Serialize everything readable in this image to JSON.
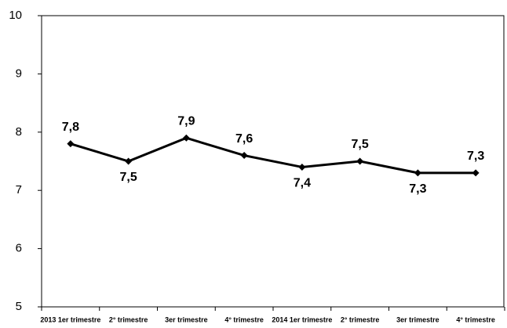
{
  "chart_data": {
    "type": "line",
    "categories": [
      "2013 1er trimestre",
      "2° trimestre",
      "3er trimestre",
      "4° trimestre",
      "2014 1er trimestre",
      "2° trimestre",
      "3er trimestre",
      "4° trimestre"
    ],
    "values": [
      7.8,
      7.5,
      7.9,
      7.6,
      7.4,
      7.5,
      7.3,
      7.3
    ],
    "value_labels": [
      "7,8",
      "7,5",
      "7,9",
      "7,6",
      "7,4",
      "7,5",
      "7,3",
      "7,3"
    ],
    "color": "#000000",
    "ylim": [
      5,
      10
    ],
    "yticks": [
      5,
      6,
      7,
      8,
      9,
      10
    ],
    "grid": false
  }
}
